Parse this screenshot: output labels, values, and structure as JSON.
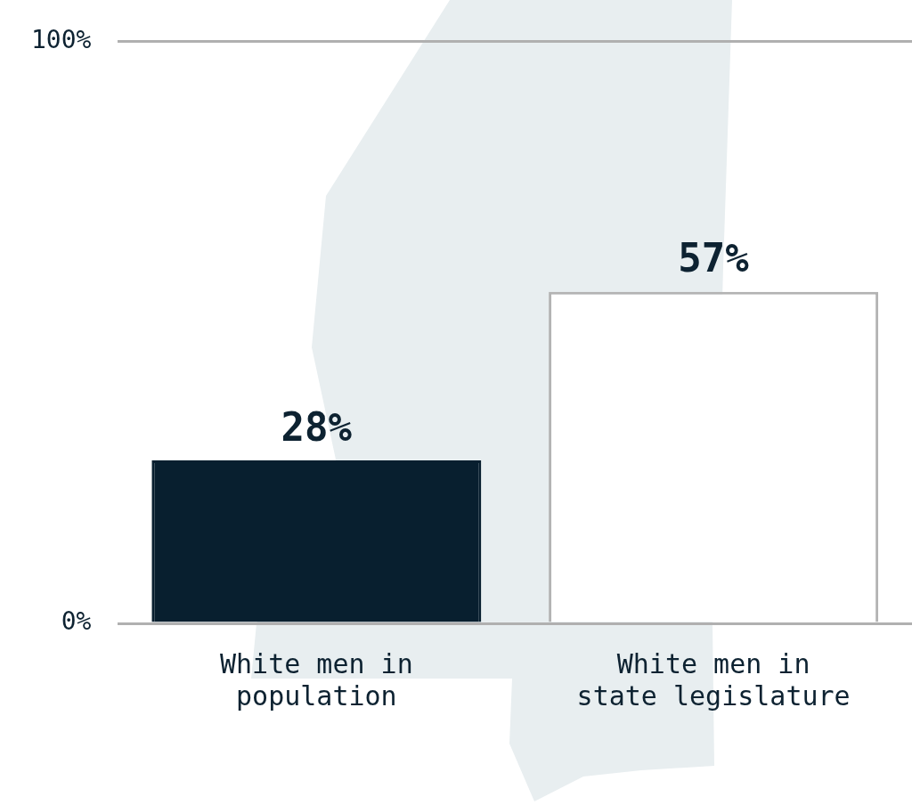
{
  "chart_data": {
    "type": "bar",
    "categories": [
      "White men in population",
      "White men in state legislature"
    ],
    "values": [
      28,
      57
    ],
    "value_labels": [
      "28%",
      "57%"
    ],
    "data_labels": true,
    "colors": [
      "#081f2f",
      "#ffffff"
    ],
    "ylim": [
      0,
      100
    ],
    "yticks": [
      {
        "value": 0,
        "label": "0%"
      },
      {
        "value": 100,
        "label": "100%"
      }
    ],
    "grid": true
  }
}
